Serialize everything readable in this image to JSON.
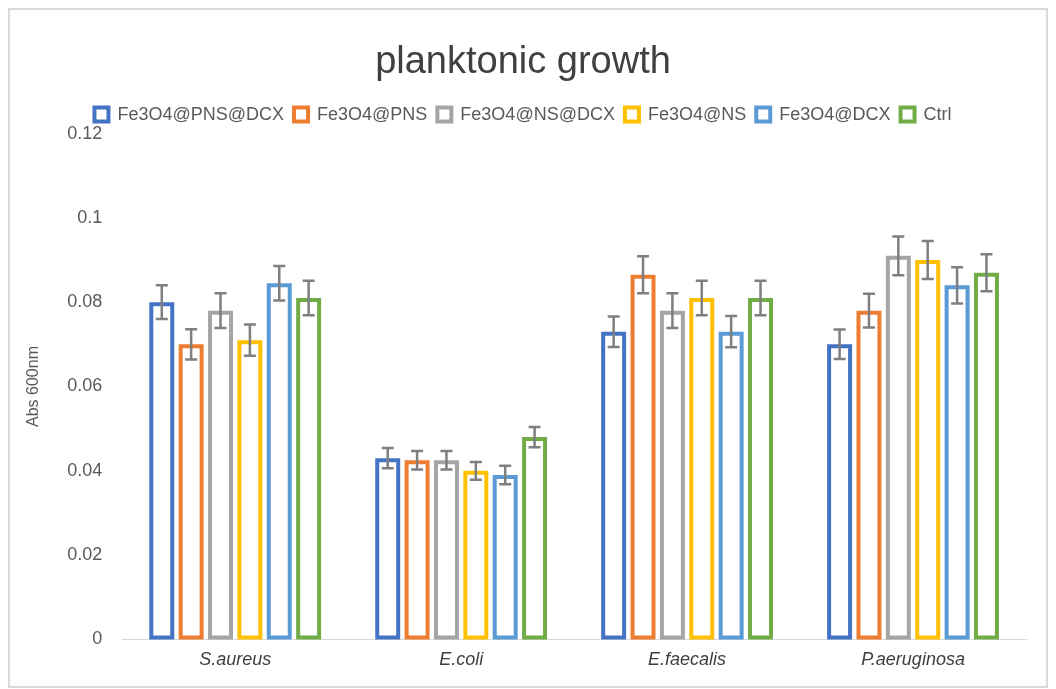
{
  "chart_data": {
    "type": "bar",
    "title": "planktonic growth",
    "ylabel": "Abs 600nm",
    "categories": [
      "S.aureus",
      "E.coli",
      "E.faecalis",
      "P.aeruginosa"
    ],
    "series": [
      {
        "name": "Fe3O4@PNS@DCX",
        "color": "#4472c4",
        "values": [
          0.08,
          0.043,
          0.073,
          0.07
        ],
        "errors": [
          0.004,
          0.0024,
          0.0036,
          0.0035
        ]
      },
      {
        "name": "Fe3O4@PNS",
        "color": "#ed7d31",
        "values": [
          0.07,
          0.0425,
          0.0865,
          0.078
        ],
        "errors": [
          0.0036,
          0.0022,
          0.0044,
          0.004
        ]
      },
      {
        "name": "Fe3O4@NS@DCX",
        "color": "#a5a5a5",
        "values": [
          0.078,
          0.0425,
          0.078,
          0.091
        ],
        "errors": [
          0.0041,
          0.0022,
          0.0041,
          0.0046
        ]
      },
      {
        "name": "Fe3O4@NS",
        "color": "#ffc000",
        "values": [
          0.071,
          0.04,
          0.081,
          0.09
        ],
        "errors": [
          0.0037,
          0.0021,
          0.0041,
          0.0045
        ]
      },
      {
        "name": "Fe3O4@DCX",
        "color": "#5b9bd5",
        "values": [
          0.0845,
          0.039,
          0.073,
          0.084
        ],
        "errors": [
          0.0041,
          0.0022,
          0.0037,
          0.0043
        ]
      },
      {
        "name": "Ctrl",
        "color": "#70ad47",
        "values": [
          0.081,
          0.048,
          0.081,
          0.087
        ],
        "errors": [
          0.0041,
          0.0024,
          0.0041,
          0.0044
        ]
      }
    ],
    "ylim": [
      0,
      0.12
    ],
    "yticks": [
      0,
      0.02,
      0.04,
      0.06,
      0.08,
      0.1,
      0.12
    ],
    "grid": false,
    "legend": "top"
  }
}
